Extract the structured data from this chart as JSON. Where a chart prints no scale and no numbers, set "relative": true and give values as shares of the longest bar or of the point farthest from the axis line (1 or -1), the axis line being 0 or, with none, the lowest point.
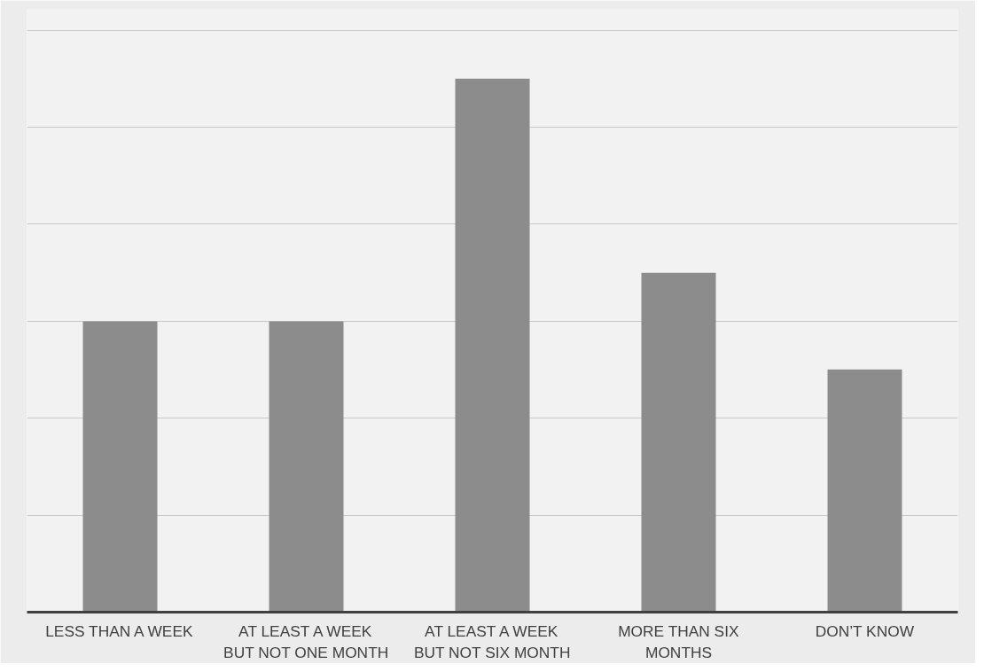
{
  "chart_data": {
    "type": "bar",
    "relative": true,
    "categories": [
      "LESS THAN A WEEK",
      "AT LEAST A WEEK BUT NOT ONE MONTH",
      "AT LEAST A WEEK BUT NOT SIX MONTH",
      "MORE THAN SIX MONTHS",
      "DON’T KNOW"
    ],
    "values": [
      0.545,
      0.545,
      1,
      0.636,
      0.455
    ],
    "color": "#8c8c8c",
    "grid": "y"
  }
}
